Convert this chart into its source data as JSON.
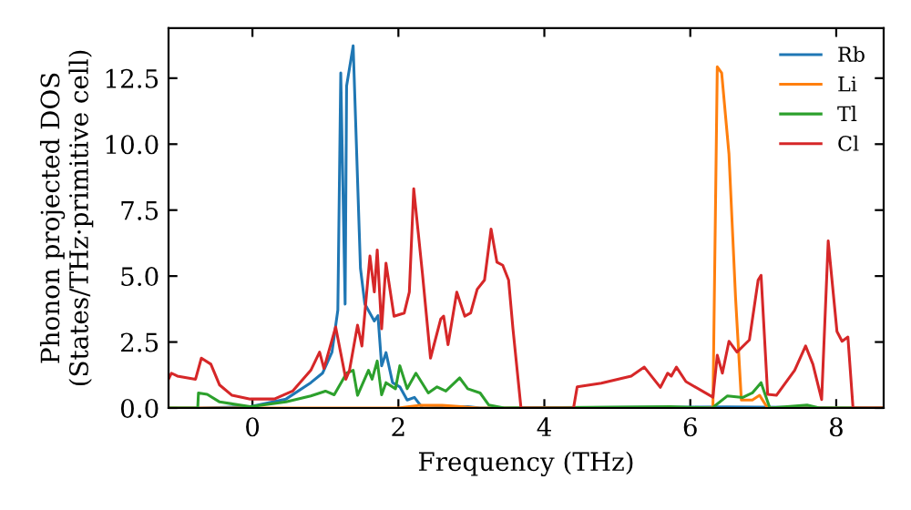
{
  "chart_data": {
    "type": "line",
    "xlabel": "Frequency (THz)",
    "ylabel": "Phonon projected DOS\n(States/THz·primitive cell)",
    "xlim": [
      -1.15,
      8.65
    ],
    "ylim": [
      0,
      14.4
    ],
    "xticks": [
      0,
      2,
      4,
      6,
      8
    ],
    "yticks": [
      {
        "value": 0,
        "label": "0.0"
      },
      {
        "value": 2.5,
        "label": "2.5"
      },
      {
        "value": 5,
        "label": "5.0"
      },
      {
        "value": 7.5,
        "label": "7.5"
      },
      {
        "value": 10,
        "label": "10.0"
      },
      {
        "value": 12.5,
        "label": "12.5"
      }
    ],
    "grid": false,
    "legend": "top right",
    "series": [
      {
        "name": "Rb",
        "color": "#1f77b4",
        "x": [
          -1.15,
          -0.7,
          -0.03,
          0.46,
          0.8,
          0.96,
          1.09,
          1.17,
          1.21,
          1.27,
          1.29,
          1.38,
          1.48,
          1.54,
          1.67,
          1.72,
          1.77,
          1.83,
          1.92,
          2.02,
          2.12,
          2.22,
          2.33,
          2.95,
          3.12,
          6.5,
          8.65
        ],
        "values": [
          0,
          0,
          0.05,
          0.34,
          0.96,
          1.32,
          2.12,
          3.71,
          12.7,
          3.94,
          12.2,
          13.73,
          5.3,
          3.94,
          3.3,
          3.5,
          1.6,
          2.1,
          0.96,
          0.8,
          0.3,
          0.4,
          0,
          0.05,
          0,
          0.04,
          0
        ]
      },
      {
        "name": "Li",
        "color": "#ff7f0e",
        "x": [
          -1.15,
          2.0,
          2.3,
          2.6,
          3.1,
          6.31,
          6.37,
          6.43,
          6.53,
          6.62,
          6.7,
          6.85,
          6.95,
          7.06,
          8.65
        ],
        "values": [
          0,
          0,
          0.1,
          0.1,
          0,
          0,
          12.93,
          12.7,
          9.63,
          4.2,
          0.3,
          0.3,
          0.48,
          0,
          0
        ]
      },
      {
        "name": "Tl",
        "color": "#2ca02c",
        "x": [
          -1.15,
          -0.75,
          -0.74,
          -0.62,
          -0.45,
          -0.03,
          0.46,
          0.8,
          1.0,
          1.12,
          1.29,
          1.38,
          1.44,
          1.59,
          1.64,
          1.71,
          1.77,
          1.83,
          1.96,
          2.02,
          2.12,
          2.24,
          2.41,
          2.53,
          2.65,
          2.84,
          2.95,
          3.12,
          3.24,
          3.45,
          5.73,
          6.3,
          6.51,
          6.72,
          6.85,
          6.97,
          7.09,
          7.6,
          7.77,
          8.65
        ],
        "values": [
          0,
          0,
          0.57,
          0.52,
          0.23,
          0.05,
          0.23,
          0.46,
          0.64,
          0.5,
          1.32,
          1.43,
          0.48,
          1.43,
          1.09,
          1.78,
          0.5,
          0.96,
          0.73,
          1.6,
          0.73,
          1.32,
          0.57,
          0.8,
          0.64,
          1.14,
          0.73,
          0.57,
          0.11,
          0,
          0.05,
          0,
          0.46,
          0.4,
          0.57,
          0.96,
          0,
          0.11,
          0,
          0
        ]
      },
      {
        "name": "Cl",
        "color": "#d62728",
        "x": [
          -1.15,
          -1.11,
          -1.03,
          -0.78,
          -0.7,
          -0.57,
          -0.45,
          -0.28,
          -0.03,
          0.3,
          0.55,
          0.8,
          0.92,
          0.98,
          1.14,
          1.28,
          1.33,
          1.44,
          1.5,
          1.61,
          1.67,
          1.71,
          1.77,
          1.83,
          1.94,
          2.08,
          2.15,
          2.21,
          2.33,
          2.44,
          2.58,
          2.62,
          2.68,
          2.8,
          2.91,
          2.99,
          3.08,
          3.18,
          3.27,
          3.35,
          3.43,
          3.51,
          3.57,
          3.68,
          4.4,
          4.45,
          4.78,
          5.19,
          5.37,
          5.59,
          5.69,
          5.74,
          5.81,
          5.94,
          6.31,
          6.37,
          6.44,
          6.53,
          6.64,
          6.81,
          6.93,
          6.97,
          7.06,
          7.18,
          7.43,
          7.58,
          7.68,
          7.8,
          7.89,
          8.01,
          8.08,
          8.16,
          8.23,
          8.65
        ],
        "values": [
          1.1,
          1.32,
          1.21,
          1.09,
          1.89,
          1.66,
          0.87,
          0.48,
          0.34,
          0.34,
          0.64,
          1.43,
          2.12,
          1.5,
          3.07,
          1.09,
          1.43,
          3.14,
          2.35,
          5.76,
          4.4,
          5.99,
          3.0,
          5.49,
          3.48,
          3.6,
          4.4,
          8.31,
          5.08,
          1.89,
          3.37,
          3.48,
          2.4,
          4.39,
          3.48,
          3.6,
          4.5,
          4.85,
          6.78,
          5.53,
          5.41,
          4.85,
          3.0,
          0,
          0,
          0.8,
          0.94,
          1.21,
          1.55,
          0.78,
          1.32,
          1.21,
          1.55,
          1.0,
          0.41,
          2.0,
          1.32,
          2.53,
          2.12,
          2.58,
          4.85,
          5.03,
          0.52,
          0.48,
          1.43,
          2.35,
          1.66,
          0.32,
          6.33,
          2.9,
          2.53,
          2.69,
          0,
          0
        ]
      }
    ]
  }
}
